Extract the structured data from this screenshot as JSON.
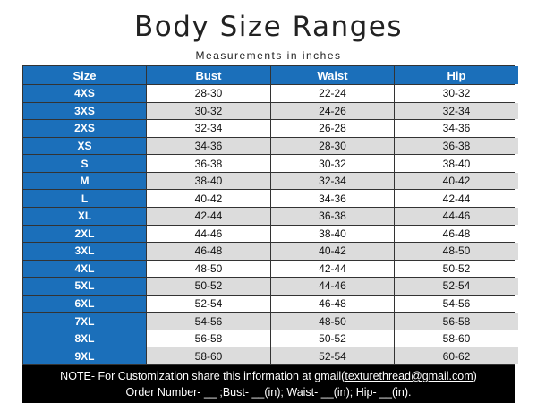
{
  "header": {
    "title": "Body Size Ranges",
    "subtitle": "Measurements in inches"
  },
  "table": {
    "headers": [
      "Size",
      "Bust",
      "Waist",
      "Hip"
    ],
    "rows": [
      [
        "4XS",
        "28-30",
        "22-24",
        "30-32"
      ],
      [
        "3XS",
        "30-32",
        "24-26",
        "32-34"
      ],
      [
        "2XS",
        "32-34",
        "26-28",
        "34-36"
      ],
      [
        "XS",
        "34-36",
        "28-30",
        "36-38"
      ],
      [
        "S",
        "36-38",
        "30-32",
        "38-40"
      ],
      [
        "M",
        "38-40",
        "32-34",
        "40-42"
      ],
      [
        "L",
        "40-42",
        "34-36",
        "42-44"
      ],
      [
        "XL",
        "42-44",
        "36-38",
        "44-46"
      ],
      [
        "2XL",
        "44-46",
        "38-40",
        "46-48"
      ],
      [
        "3XL",
        "46-48",
        "40-42",
        "48-50"
      ],
      [
        "4XL",
        "48-50",
        "42-44",
        "50-52"
      ],
      [
        "5XL",
        "50-52",
        "44-46",
        "52-54"
      ],
      [
        "6XL",
        "52-54",
        "46-48",
        "54-56"
      ],
      [
        "7XL",
        "54-56",
        "48-50",
        "56-58"
      ],
      [
        "8XL",
        "56-58",
        "50-52",
        "58-60"
      ],
      [
        "9XL",
        "58-60",
        "52-54",
        "60-62"
      ]
    ]
  },
  "note": {
    "line1_prefix": "NOTE- For Customization share this information at gmail(",
    "email": "texturethread@gmail.com",
    "line1_suffix": ")",
    "line2": "Order Number- __ ;Bust- __(in); Waist- __(in); Hip- __(in)."
  }
}
